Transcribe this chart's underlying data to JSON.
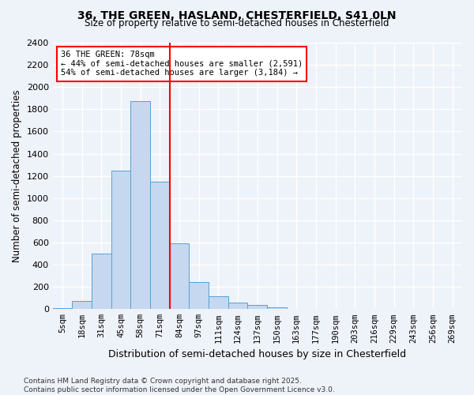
{
  "title1": "36, THE GREEN, HASLAND, CHESTERFIELD, S41 0LN",
  "title2": "Size of property relative to semi-detached houses in Chesterfield",
  "xlabel": "Distribution of semi-detached houses by size in Chesterfield",
  "ylabel": "Number of semi-detached properties",
  "categories": [
    "5sqm",
    "18sqm",
    "31sqm",
    "45sqm",
    "58sqm",
    "71sqm",
    "84sqm",
    "97sqm",
    "111sqm",
    "124sqm",
    "137sqm",
    "150sqm",
    "163sqm",
    "177sqm",
    "190sqm",
    "203sqm",
    "216sqm",
    "229sqm",
    "243sqm",
    "256sqm",
    "269sqm"
  ],
  "values": [
    10,
    75,
    500,
    1245,
    1875,
    1150,
    590,
    245,
    115,
    60,
    35,
    18,
    5,
    0,
    0,
    0,
    0,
    0,
    0,
    0,
    0
  ],
  "bar_color": "#c5d8f0",
  "bar_edge_color": "#5a9fd4",
  "property_label": "36 THE GREEN: 78sqm",
  "pct_smaller": 44,
  "pct_larger": 54,
  "n_smaller": 2591,
  "n_larger": 3184,
  "vline_x": 5.5,
  "ylim": [
    0,
    2400
  ],
  "yticks": [
    0,
    200,
    400,
    600,
    800,
    1000,
    1200,
    1400,
    1600,
    1800,
    2000,
    2200,
    2400
  ],
  "footnote": "Contains HM Land Registry data © Crown copyright and database right 2025.\nContains public sector information licensed under the Open Government Licence v3.0.",
  "bg_color": "#eef2f9"
}
